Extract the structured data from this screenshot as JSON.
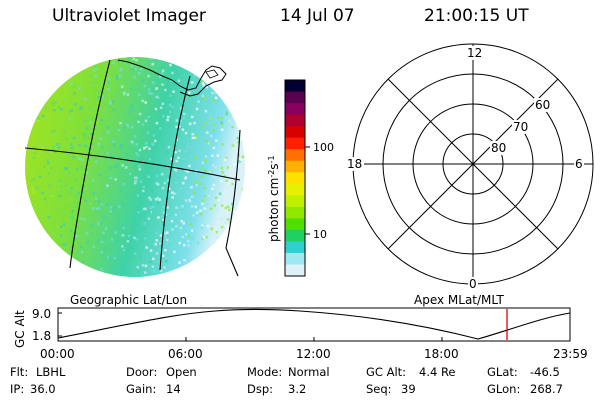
{
  "header": {
    "instrument": "Ultraviolet Imager",
    "date": "14 Jul 07",
    "time": "21:00:15 UT"
  },
  "image_panel": {
    "caption": "Geographic Lat/Lon"
  },
  "colorbar": {
    "unit_label": "photon cm",
    "unit_sup1": "-2",
    "unit_s": "s",
    "unit_sup2": "-1",
    "ticks": [
      "100",
      "10"
    ],
    "scale": "log",
    "colors": [
      "#000033",
      "#5a0050",
      "#8a0060",
      "#b00030",
      "#d80000",
      "#ff2000",
      "#ff7000",
      "#ffb000",
      "#ffe000",
      "#e6f000",
      "#c0f000",
      "#90e800",
      "#50e000",
      "#20d060",
      "#30d0d0",
      "#a0e8f0",
      "#e0f0f8"
    ]
  },
  "polar_panel": {
    "caption": "Apex MLat/MLT",
    "mlt_labels": {
      "top": "12",
      "left": "18",
      "right": "6",
      "bottom": "0"
    },
    "lat_labels": [
      "60",
      "70",
      "80"
    ]
  },
  "altitude_plot": {
    "ylabel": "GC Alt",
    "yticks": [
      "9.0",
      "1.8"
    ],
    "xticks": [
      "00:00",
      "06:00",
      "12:00",
      "18:00",
      "23:59"
    ],
    "current_marker_color": "#dd0000"
  },
  "status": {
    "row1": [
      {
        "label": "Flt:",
        "value": "LBHL"
      },
      {
        "label": "Door:",
        "value": "Open"
      },
      {
        "label": "Mode:",
        "value": "Normal"
      },
      {
        "label": "GC Alt:",
        "value": "4.4 Re"
      },
      {
        "label": "GLat:",
        "value": "-46.5"
      }
    ],
    "row2": [
      {
        "label": "IP:",
        "value": "36.0"
      },
      {
        "label": "Gain:",
        "value": "14"
      },
      {
        "label": "Dsp:",
        "value": "3.2"
      },
      {
        "label": "Seq:",
        "value": "39"
      },
      {
        "label": "GLon:",
        "value": "268.7"
      }
    ]
  }
}
